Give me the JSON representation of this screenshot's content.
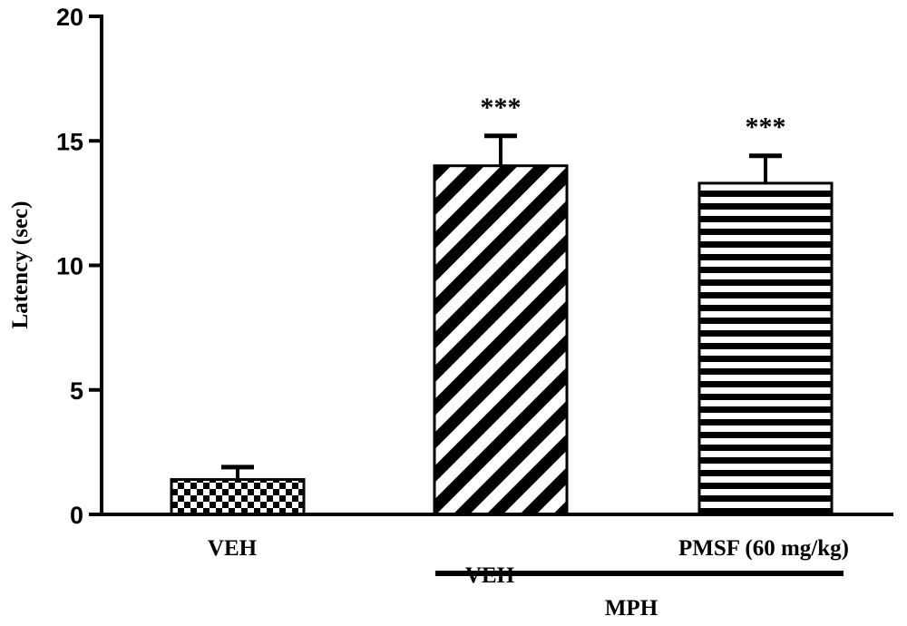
{
  "chart_data": {
    "type": "bar",
    "title": "",
    "xlabel": "",
    "ylabel": "Latency (sec)",
    "ylim": [
      0,
      20
    ],
    "yticks": [
      "0",
      "5",
      "10",
      "15",
      "20"
    ],
    "categories": [
      "VEH",
      "VEH",
      "PMSF (60 mg/kg)"
    ],
    "values": [
      1.4,
      14.0,
      13.3
    ],
    "errors": [
      0.5,
      1.2,
      1.1
    ],
    "patterns": [
      "checkerboard",
      "diagonal-stripes",
      "horizontal-stripes"
    ],
    "significance": [
      "",
      "***",
      "***"
    ],
    "group_label": "MPH",
    "group_members": [
      1,
      2
    ],
    "grid": false,
    "colors": {
      "ink": "#000000",
      "background": "#ffffff"
    }
  }
}
